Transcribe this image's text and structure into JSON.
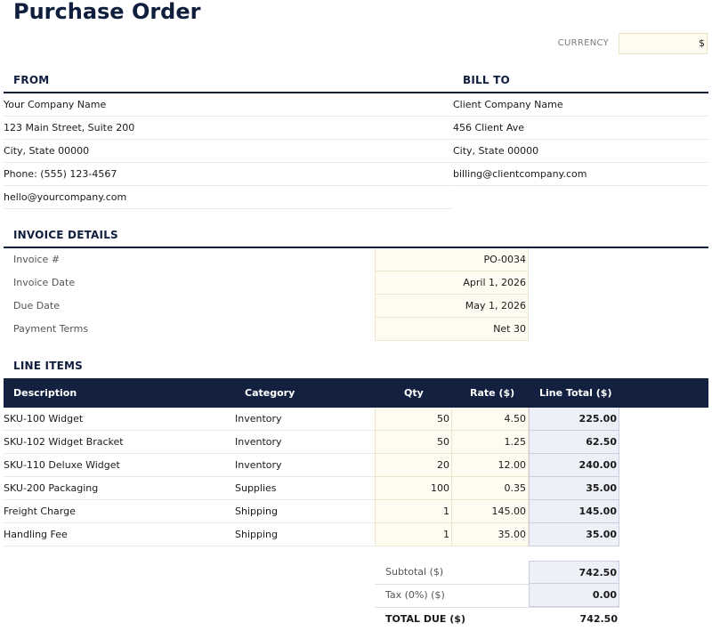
{
  "title": "Purchase Order",
  "currency": {
    "label": "CURRENCY",
    "value": "$"
  },
  "from": {
    "heading": "FROM",
    "lines": [
      "Your Company Name",
      "123 Main Street, Suite 200",
      "City, State 00000",
      "Phone: (555) 123-4567",
      "hello@yourcompany.com"
    ]
  },
  "bill_to": {
    "heading": "BILL TO",
    "lines": [
      "Client Company Name",
      "456 Client Ave",
      "City, State 00000",
      "billing@clientcompany.com"
    ]
  },
  "invoice_details": {
    "heading": "INVOICE DETAILS",
    "fields": [
      {
        "label": "Invoice #",
        "value": "PO-0034"
      },
      {
        "label": "Invoice Date",
        "value": "April 1, 2026"
      },
      {
        "label": "Due Date",
        "value": "May 1, 2026"
      },
      {
        "label": "Payment Terms",
        "value": "Net 30"
      }
    ]
  },
  "line_items": {
    "heading": "LINE ITEMS",
    "columns": {
      "description": "Description",
      "category": "Category",
      "qty": "Qty",
      "rate": "Rate ($)",
      "line_total": "Line Total ($)"
    },
    "rows": [
      {
        "description": "SKU-100 Widget",
        "category": "Inventory",
        "qty": "50",
        "rate": "4.50",
        "line_total": "225.00"
      },
      {
        "description": "SKU-102 Widget Bracket",
        "category": "Inventory",
        "qty": "50",
        "rate": "1.25",
        "line_total": "62.50"
      },
      {
        "description": "SKU-110 Deluxe Widget",
        "category": "Inventory",
        "qty": "20",
        "rate": "12.00",
        "line_total": "240.00"
      },
      {
        "description": "SKU-200 Packaging",
        "category": "Supplies",
        "qty": "100",
        "rate": "0.35",
        "line_total": "35.00"
      },
      {
        "description": "Freight Charge",
        "category": "Shipping",
        "qty": "1",
        "rate": "145.00",
        "line_total": "145.00"
      },
      {
        "description": "Handling Fee",
        "category": "Shipping",
        "qty": "1",
        "rate": "35.00",
        "line_total": "35.00"
      }
    ]
  },
  "summary": {
    "subtotal_label": "Subtotal ($)",
    "subtotal": "742.50",
    "tax_label": "Tax (0%) ($)",
    "tax": "0.00",
    "total_label": "TOTAL DUE ($)",
    "total": "742.50"
  },
  "colors": {
    "navy": "#13203f",
    "input_fill": "#fefcf1",
    "computed_fill": "#eef0f7"
  }
}
